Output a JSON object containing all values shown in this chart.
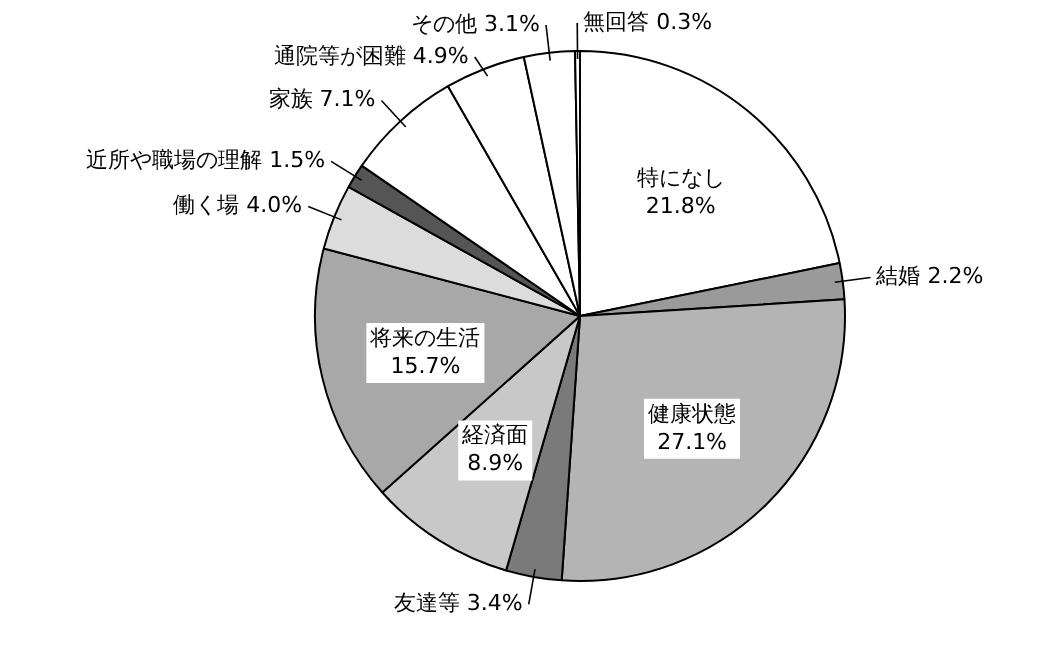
{
  "chart_data": {
    "type": "pie",
    "categories": [
      "特になし",
      "結婚",
      "健康状態",
      "友達等",
      "経済面",
      "将来の生活",
      "働く場",
      "近所や職場の理解",
      "家族",
      "通院等が困難",
      "その他",
      "無回答"
    ],
    "values": [
      21.8,
      2.2,
      27.1,
      3.4,
      8.9,
      15.7,
      4.0,
      1.5,
      7.1,
      4.9,
      3.1,
      0.3
    ],
    "value_labels": [
      "21.8%",
      "2.2%",
      "27.1%",
      "3.4%",
      "8.9%",
      "15.7%",
      "4.0%",
      "1.5%",
      "7.1%",
      "4.9%",
      "3.1%",
      "0.3%"
    ],
    "colors": [
      "#ffffff",
      "#9a9a9a",
      "#b4b4b4",
      "#7a7a7a",
      "#c8c8c8",
      "#a8a8a8",
      "#dcdcdc",
      "#555555",
      "#ffffff",
      "#ffffff",
      "#ffffff",
      "#ffffff"
    ]
  }
}
